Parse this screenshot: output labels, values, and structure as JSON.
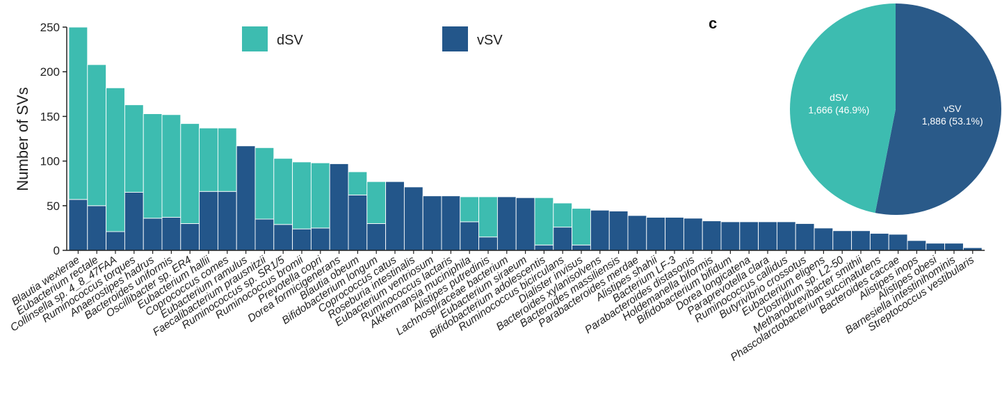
{
  "chart_data": [
    {
      "type": "bar",
      "stacked": true,
      "ylabel": "Number of SVs",
      "ylim": [
        0,
        250
      ],
      "yticks": [
        0,
        50,
        100,
        150,
        200,
        250
      ],
      "legend": [
        "dSV",
        "vSV"
      ],
      "colors": {
        "dSV": "#3dbcb0",
        "vSV": "#23568a"
      },
      "categories": [
        "Blautia wexlerae",
        "Eubacterium rectale",
        "Collinsella sp. 4_8_47FAA",
        "Ruminococcus torques",
        "Anaerostipes hadrus",
        "Bacteroides uniformis",
        "Oscillibacter sp. ER4",
        "Eubacterium hallii",
        "Coprococcus comes",
        "Eubacterium ramulus",
        "Faecalibacterium prausnitzii",
        "Ruminococcus sp. SR1/5",
        "Ruminococcus bromii",
        "Prevotella copri",
        "Dorea formicigenerans",
        "Blautia obeum",
        "Bifidobacterium longum",
        "Coprococcus catus",
        "Roseburia intestinalis",
        "Eubacterium ventriosum",
        "Ruminococcus lactaris",
        "Akkermansia muciniphila",
        "Alistipes putredinis",
        "Lachnospiraceae bacterium",
        "Eubacterium siraeum",
        "Bifidobacterium adolescentis",
        "Ruminococcus bicirculans",
        "Dialister invisus",
        "Bacteroides xylanisolvens",
        "Bacteroides massiliensis",
        "Parabacteroides merdae",
        "Alistipes shahii",
        "Bacterium LF-3",
        "Parabacteroides distasonis",
        "Holdemanella biformis",
        "Bifidobacterium bifidum",
        "Dorea longicatena",
        "Paraprevotella clara",
        "Ruminococcus callidus",
        "Butyrivibrio crossotus",
        "Eubacterium eligens",
        "Clostridium sp. L2-50",
        "Methanobrevibacter smithii",
        "Phascolarctobacterium succinatutens",
        "Bacteroides caccae",
        "Alistipes inops",
        "Alistipes obesi",
        "Barnesiella intestinihominis",
        "Streptococcus vestibularis"
      ],
      "series": [
        {
          "name": "vSV",
          "values": [
            57,
            50,
            21,
            65,
            36,
            37,
            30,
            66,
            66,
            117,
            35,
            29,
            24,
            25,
            97,
            62,
            30,
            77,
            71,
            61,
            61,
            32,
            15,
            60,
            59,
            6,
            26,
            6,
            45,
            44,
            39,
            37,
            37,
            36,
            33,
            32,
            32,
            32,
            32,
            30,
            25,
            22,
            22,
            19,
            18,
            11,
            8,
            8,
            3
          ]
        },
        {
          "name": "dSV",
          "values": [
            193,
            158,
            161,
            98,
            117,
            115,
            112,
            71,
            71,
            0,
            80,
            74,
            75,
            73,
            0,
            26,
            47,
            0,
            0,
            0,
            0,
            28,
            45,
            0,
            0,
            53,
            27,
            41,
            0,
            0,
            0,
            0,
            0,
            0,
            0,
            0,
            0,
            0,
            0,
            0,
            0,
            0,
            0,
            0,
            0,
            0,
            0,
            0,
            0
          ]
        }
      ]
    },
    {
      "type": "pie",
      "panel_label": "c",
      "slices": [
        {
          "name": "dSV",
          "value": 1666,
          "label_line1": "dSV",
          "label_line2": "1,666 (46.9%)",
          "color": "#3dbcb0"
        },
        {
          "name": "vSV",
          "value": 1886,
          "label_line1": "vSV",
          "label_line2": "1,886 (53.1%)",
          "color": "#2a5a89"
        }
      ]
    }
  ]
}
